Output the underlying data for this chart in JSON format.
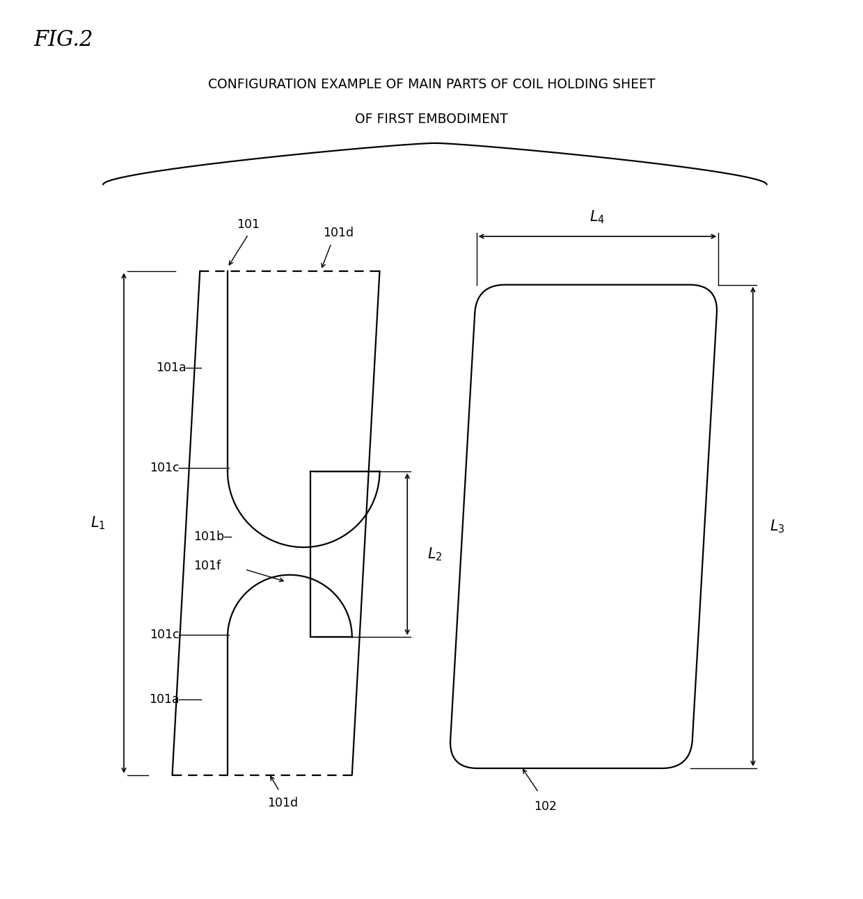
{
  "title": "FIG.2",
  "subtitle_line1": "CONFIGURATION EXAMPLE OF MAIN PARTS OF COIL HOLDING SHEET",
  "subtitle_line2": "OF FIRST EMBODIMENT",
  "bg_color": "#ffffff",
  "line_color": "#000000",
  "fig_size": [
    12.4,
    12.93
  ],
  "dpi": 100
}
